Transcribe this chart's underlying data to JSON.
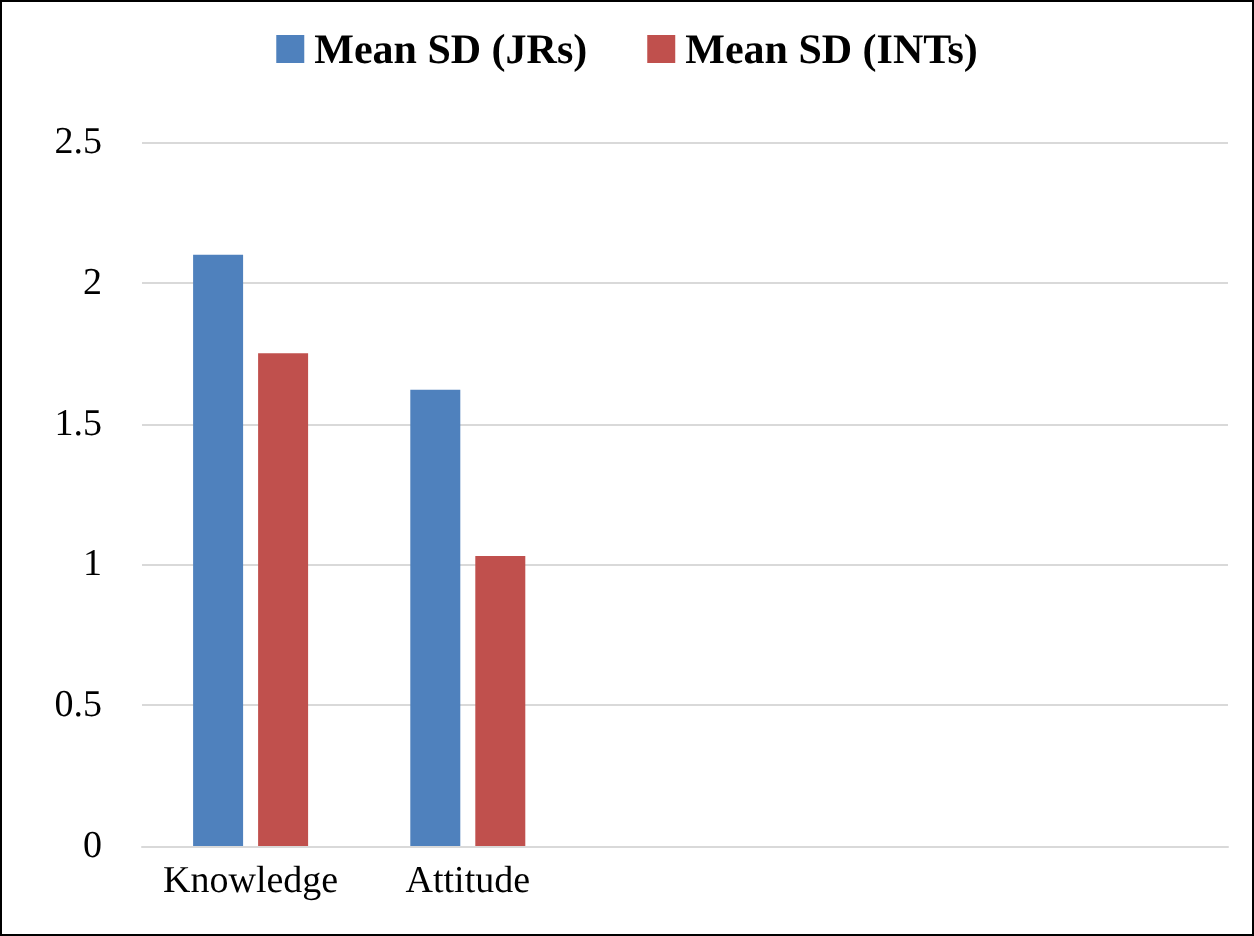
{
  "chart_data": {
    "type": "bar",
    "categories": [
      "Knowledge",
      "Attitude",
      null,
      null,
      null
    ],
    "series": [
      {
        "name": "Mean SD (JRs)",
        "color": "#4f81bd",
        "values": [
          2.1,
          1.62,
          null,
          null,
          null
        ]
      },
      {
        "name": "Mean SD (INTs)",
        "color": "#c0504d",
        "values": [
          1.75,
          1.03,
          null,
          null,
          null
        ]
      }
    ],
    "ylim": [
      0,
      2.5
    ],
    "yticks": [
      0,
      0.5,
      1,
      1.5,
      2,
      2.5
    ],
    "grid": "y",
    "legend": "top"
  }
}
